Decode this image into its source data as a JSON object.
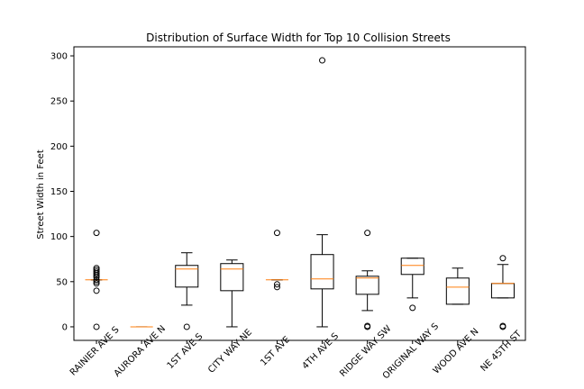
{
  "chart_data": {
    "type": "box",
    "title": "Distribution of Surface Width for Top 10 Collision Streets",
    "xlabel": "",
    "ylabel": "Street Width in Feet",
    "ylim": [
      -15,
      310
    ],
    "yticks": [
      0,
      50,
      100,
      150,
      200,
      250,
      300
    ],
    "grid": false,
    "categories": [
      "RAINIER AVE S",
      "AURORA AVE N",
      "1ST AVE S",
      "CITY WAY NE",
      "1ST AVE",
      "4TH AVE S",
      "RIDGE WAY SW",
      "ORIGINAL WAY S",
      "WOOD AVE N",
      "NE 45TH ST"
    ],
    "boxes": [
      {
        "q1": 52,
        "median": 52,
        "q3": 52,
        "whisker_low": 52,
        "whisker_high": 52,
        "outliers": [
          0,
          40,
          48,
          50,
          52,
          55,
          57,
          59,
          61,
          63,
          65,
          104
        ]
      },
      {
        "q1": 0,
        "median": 0,
        "q3": 0,
        "whisker_low": 0,
        "whisker_high": 0,
        "outliers": []
      },
      {
        "q1": 44,
        "median": 64,
        "q3": 68,
        "whisker_low": 24,
        "whisker_high": 82,
        "outliers": [
          0
        ]
      },
      {
        "q1": 40,
        "median": 64,
        "q3": 70,
        "whisker_low": 0,
        "whisker_high": 74,
        "outliers": []
      },
      {
        "q1": 52,
        "median": 52,
        "q3": 52,
        "whisker_low": 52,
        "whisker_high": 52,
        "outliers": [
          44,
          47,
          104
        ]
      },
      {
        "q1": 42,
        "median": 53,
        "q3": 80,
        "whisker_low": 0,
        "whisker_high": 102,
        "outliers": [
          295
        ]
      },
      {
        "q1": 36,
        "median": 54,
        "q3": 56,
        "whisker_low": 18,
        "whisker_high": 62,
        "outliers": [
          0,
          1,
          104
        ]
      },
      {
        "q1": 58,
        "median": 68,
        "q3": 76,
        "whisker_low": 32,
        "whisker_high": 76,
        "outliers": [
          21
        ]
      },
      {
        "q1": 25,
        "median": 44,
        "q3": 54,
        "whisker_low": 25,
        "whisker_high": 65,
        "outliers": []
      },
      {
        "q1": 32,
        "median": 48,
        "q3": 48,
        "whisker_low": 32,
        "whisker_high": 69,
        "outliers": [
          0,
          1,
          76
        ]
      }
    ],
    "colors": {
      "box": "#000000",
      "median": "#ff7f0e",
      "flier": "#000000"
    }
  }
}
